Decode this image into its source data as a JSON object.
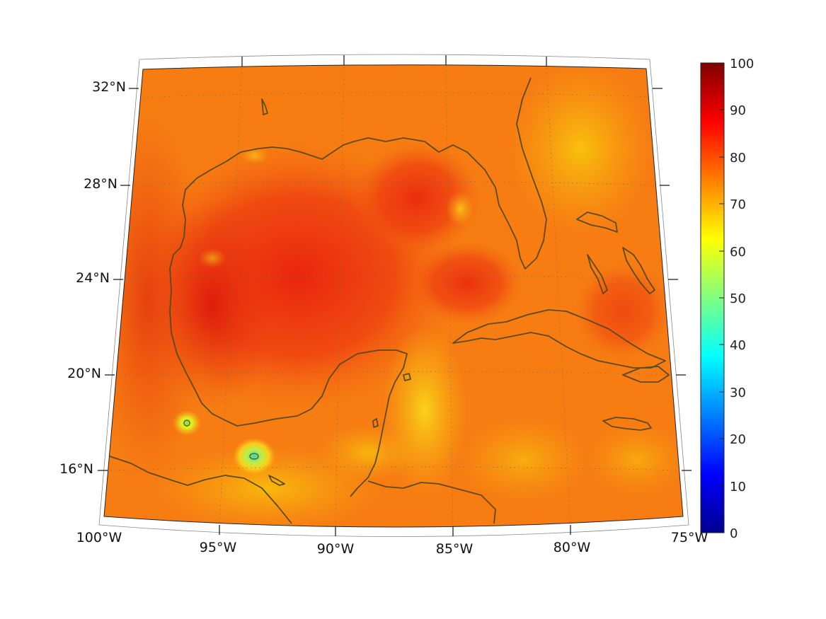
{
  "map": {
    "lat_labels": [
      "32°N",
      "28°N",
      "24°N",
      "20°N",
      "16°N"
    ],
    "lon_labels": [
      "100°W",
      "95°W",
      "90°W",
      "85°W",
      "80°W",
      "75°W"
    ],
    "extent": {
      "lon_min": -100,
      "lon_max": -75,
      "lat_min": 14,
      "lat_max": 33
    },
    "coastline_color": "#5c4a1e",
    "field_hotspots_note": ""
  },
  "colorbar": {
    "range": [
      0,
      100
    ],
    "labels": [
      "100",
      "90",
      "80",
      "70",
      "60",
      "50",
      "40",
      "30",
      "20",
      "10",
      "0"
    ],
    "colormap": "jet"
  }
}
